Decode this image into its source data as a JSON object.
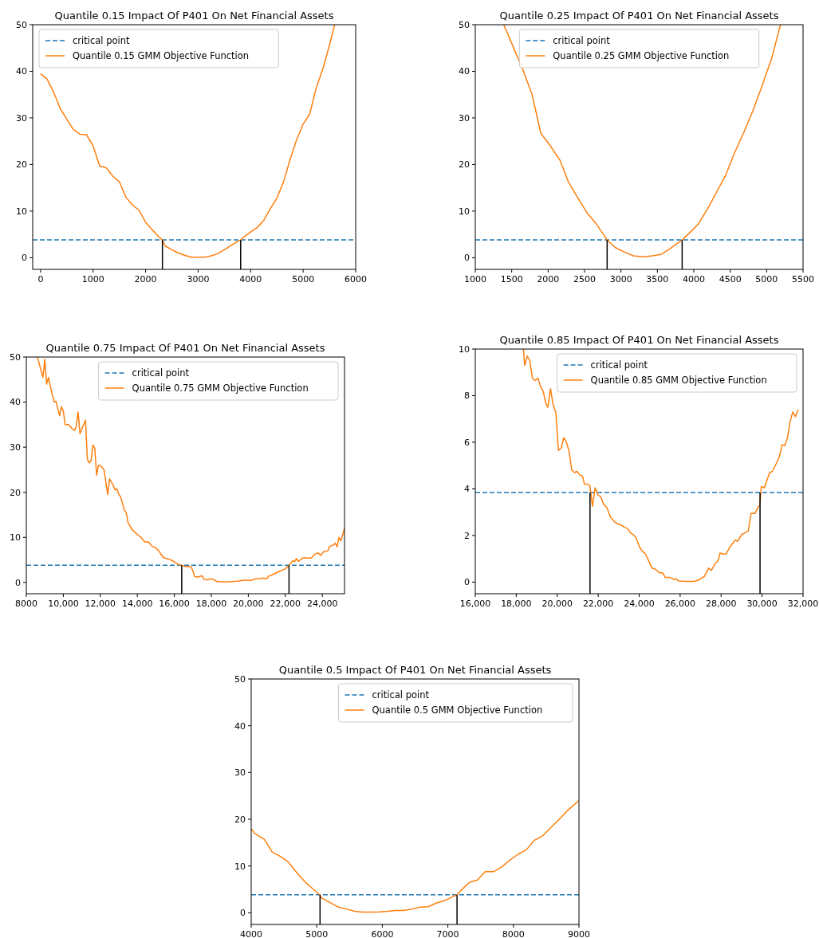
{
  "chart_data": [
    {
      "type": "line",
      "title": "Quantile 0.15 Impact Of P401 On Net Financial Assets",
      "xlim": [
        -150,
        6000
      ],
      "xticks": [
        0,
        1000,
        2000,
        3000,
        4000,
        5000,
        6000
      ],
      "ylim": [
        -2.5,
        50
      ],
      "yticks": [
        0,
        10,
        20,
        30,
        40,
        50
      ],
      "legend": "top left",
      "grid": false,
      "line_style": "solid",
      "ref_lines": [
        {
          "axis": "y",
          "value": 3.84,
          "label": "critical point",
          "color": "#1f77b4",
          "line_style": "dashed"
        }
      ],
      "series": [
        {
          "name": "Quantile 0.15 GMM Objective Function",
          "color": "#ff7f0e",
          "x": [
            0,
            125,
            250,
            375,
            500,
            625,
            750,
            875,
            1000,
            1125,
            1250,
            1375,
            1500,
            1625,
            1750,
            1875,
            2000,
            2125,
            2250,
            2320,
            2375,
            2500,
            2625,
            2750,
            2875,
            3000,
            3125,
            3250,
            3375,
            3500,
            3625,
            3750,
            3810,
            3875,
            4000,
            4125,
            4250,
            4375,
            4500,
            4625,
            4750,
            4875,
            5000,
            5125,
            5250,
            5375,
            5500,
            5600
          ],
          "values": [
            39.5,
            38.3,
            35.5,
            32,
            29.7,
            27.5,
            26.5,
            26.4,
            24,
            19.7,
            19.3,
            17.5,
            16.3,
            13,
            11.3,
            10.2,
            7.6,
            6,
            4.5,
            3.8,
            2.5,
            1.7,
            1,
            0.5,
            0.1,
            0.1,
            0.1,
            0.4,
            0.9,
            1.7,
            2.6,
            3.5,
            3.8,
            4.5,
            5.5,
            6.5,
            8,
            10.5,
            12.8,
            16.2,
            21,
            25.3,
            28.7,
            30.8,
            36.5,
            40.5,
            45.6,
            50
          ]
        },
        {
          "color": "#000000",
          "x": [
            2320,
            2320
          ],
          "values": [
            -2.5,
            3.8
          ]
        },
        {
          "color": "#000000",
          "x": [
            3810,
            3810
          ],
          "values": [
            -2.5,
            3.8
          ]
        }
      ]
    },
    {
      "type": "line",
      "title": "Quantile 0.25 Impact Of P401 On Net Financial Assets",
      "xlim": [
        1000,
        5500
      ],
      "xticks": [
        1000,
        1500,
        2000,
        2500,
        3000,
        3500,
        4000,
        4500,
        5000,
        5500
      ],
      "ylim": [
        -2.5,
        50
      ],
      "yticks": [
        0,
        10,
        20,
        30,
        40,
        50
      ],
      "legend": "top",
      "grid": false,
      "line_style": "solid",
      "ref_lines": [
        {
          "axis": "y",
          "value": 3.84,
          "label": "critical point",
          "color": "#1f77b4",
          "line_style": "dashed"
        }
      ],
      "series": [
        {
          "name": "Quantile 0.25 GMM Objective Function",
          "color": "#ff7f0e",
          "x": [
            1390,
            1500,
            1650,
            1780,
            1900,
            2030,
            2160,
            2280,
            2410,
            2540,
            2660,
            2810,
            2920,
            3050,
            3170,
            3300,
            3430,
            3550,
            3680,
            3840,
            3940,
            4060,
            4190,
            4310,
            4440,
            4560,
            4690,
            4810,
            4940,
            5070,
            5190
          ],
          "values": [
            50,
            46,
            40.5,
            35,
            26.7,
            24,
            21,
            16.2,
            12.8,
            9.5,
            7.3,
            3.8,
            2.2,
            1.2,
            0.4,
            0.2,
            0.4,
            0.7,
            2,
            3.8,
            5.3,
            7.2,
            10.5,
            14,
            17.8,
            22.5,
            27,
            31.5,
            37,
            42.8,
            50
          ]
        },
        {
          "color": "#000000",
          "x": [
            2810,
            2810
          ],
          "values": [
            -2.5,
            3.8
          ]
        },
        {
          "color": "#000000",
          "x": [
            3840,
            3840
          ],
          "values": [
            -2.5,
            3.8
          ]
        }
      ]
    },
    {
      "type": "line",
      "title": "Quantile 0.75 Impact Of P401 On Net Financial Assets",
      "xlim": [
        8000,
        25200
      ],
      "xticks": [
        {
          "value": 8000,
          "label": "8000"
        },
        {
          "value": 10000,
          "label": "10,000"
        },
        {
          "value": 12000,
          "label": "12,000"
        },
        {
          "value": 14000,
          "label": "14,000"
        },
        {
          "value": 16000,
          "label": "16,000"
        },
        {
          "value": 18000,
          "label": "18,000"
        },
        {
          "value": 20000,
          "label": "20,000"
        },
        {
          "value": 22000,
          "label": "22,000"
        },
        {
          "value": 24000,
          "label": "24,000"
        }
      ],
      "ylim": [
        -2.5,
        50
      ],
      "yticks": [
        0,
        10,
        20,
        30,
        40,
        50
      ],
      "legend": "top right",
      "grid": false,
      "line_style": "solid",
      "ref_lines": [
        {
          "axis": "y",
          "value": 3.84,
          "label": "critical point",
          "color": "#1f77b4",
          "line_style": "dashed"
        }
      ],
      "series": [
        {
          "name": "Quantile 0.75 GMM Objective Function",
          "color": "#ff7f0e",
          "x": [
            8600,
            8800,
            8900,
            9000,
            9100,
            9200,
            9300,
            9500,
            9600,
            9800,
            9900,
            10000,
            10100,
            10300,
            10500,
            10600,
            10700,
            10800,
            10900,
            11000,
            11200,
            11300,
            11400,
            11500,
            11600,
            11700,
            11800,
            11900,
            12000,
            12100,
            12200,
            12400,
            12500,
            12700,
            12800,
            12900,
            13000,
            13100,
            13300,
            13400,
            13500,
            13700,
            13900,
            14200,
            14400,
            14600,
            14800,
            15000,
            15200,
            15400,
            15700,
            15900,
            16200,
            16400,
            16600,
            16900,
            17000,
            17100,
            17300,
            17500,
            17600,
            17800,
            18000,
            18200,
            18300,
            18400,
            18800,
            19400,
            19800,
            20000,
            20100,
            20400,
            20700,
            20800,
            21000,
            21100,
            21300,
            21700,
            22000,
            22200,
            22300,
            22400,
            22500,
            22600,
            22700,
            23000,
            23200,
            23400,
            23600,
            23800,
            23900,
            24100,
            24300,
            24400,
            24600,
            24700,
            24800,
            24900,
            25000,
            25200
          ],
          "values": [
            50,
            47,
            45.5,
            49.5,
            44,
            45.5,
            43.5,
            40,
            40.2,
            37,
            39,
            38,
            35,
            35,
            34,
            33.7,
            34.5,
            37.8,
            33,
            34,
            36,
            27.3,
            26.5,
            27,
            30.5,
            29.8,
            23.8,
            26,
            25.9,
            25.5,
            25,
            19.5,
            23,
            21.5,
            20.5,
            20.8,
            19.5,
            19,
            16,
            15.5,
            13.3,
            11.8,
            11,
            10,
            9,
            9,
            8,
            7.7,
            6.8,
            5.5,
            5.2,
            4.8,
            4,
            3.8,
            3.5,
            3.5,
            2.6,
            1.3,
            1.2,
            1.5,
            0.7,
            0.6,
            0.8,
            0.5,
            0.2,
            0.2,
            0.1,
            0.3,
            0.5,
            0.5,
            0.4,
            0.8,
            0.8,
            1,
            0.8,
            1.4,
            1.7,
            2.5,
            3,
            3.8,
            4.3,
            4.8,
            4.6,
            5.3,
            4.7,
            5.5,
            5.4,
            5.4,
            6.3,
            6.5,
            6,
            6.9,
            7,
            8,
            8.3,
            8.7,
            7.9,
            10,
            9.2,
            12
          ]
        },
        {
          "color": "#000000",
          "x": [
            16400,
            16400
          ],
          "values": [
            -2.5,
            3.8
          ]
        },
        {
          "color": "#000000",
          "x": [
            22200,
            22200
          ],
          "values": [
            -2.5,
            3.8
          ]
        }
      ]
    },
    {
      "type": "line",
      "title": "Quantile 0.85 Impact Of P401 On Net Financial Assets",
      "xlim": [
        16000,
        32000
      ],
      "xticks": [
        {
          "value": 16000,
          "label": "16,000"
        },
        {
          "value": 18000,
          "label": "18,000"
        },
        {
          "value": 20000,
          "label": "20,000"
        },
        {
          "value": 22000,
          "label": "22,000"
        },
        {
          "value": 24000,
          "label": "24,000"
        },
        {
          "value": 26000,
          "label": "26,000"
        },
        {
          "value": 28000,
          "label": "28,000"
        },
        {
          "value": 30000,
          "label": "30,000"
        },
        {
          "value": 32000,
          "label": "32,000"
        }
      ],
      "ylim": [
        -0.5,
        10
      ],
      "yticks": [
        0,
        2,
        4,
        6,
        8,
        10
      ],
      "legend": "top right",
      "grid": false,
      "line_style": "solid",
      "ref_lines": [
        {
          "axis": "y",
          "value": 3.84,
          "label": "critical point",
          "color": "#1f77b4",
          "line_style": "dashed"
        }
      ],
      "series": [
        {
          "name": "Quantile 0.85 GMM Objective Function",
          "color": "#ff7f0e",
          "x": [
            18350,
            18410,
            18540,
            18660,
            18790,
            18920,
            19060,
            19180,
            19310,
            19440,
            19540,
            19670,
            19800,
            19930,
            20060,
            20190,
            20320,
            20450,
            20580,
            20710,
            20840,
            20970,
            21100,
            21230,
            21330,
            21460,
            21590,
            21720,
            21850,
            21980,
            22130,
            22260,
            22420,
            22590,
            22780,
            22940,
            23110,
            23280,
            23430,
            23590,
            23760,
            23850,
            24020,
            24180,
            24310,
            24470,
            24630,
            24790,
            24990,
            25140,
            25270,
            25510,
            25710,
            25790,
            25920,
            26280,
            26480,
            26680,
            26930,
            27190,
            27390,
            27520,
            27710,
            27840,
            27950,
            28100,
            28230,
            28430,
            28680,
            28810,
            29010,
            29140,
            29330,
            29460,
            29660,
            29790,
            29890,
            29960,
            30110,
            30370,
            30500,
            30700,
            30850,
            30980,
            31110,
            31240,
            31370,
            31500,
            31630,
            31760
          ],
          "values": [
            10,
            9.3,
            9.7,
            9.5,
            8.75,
            8.65,
            8.75,
            8.4,
            8.2,
            7.7,
            7.5,
            8.3,
            7.6,
            7.3,
            5.65,
            5.75,
            6.2,
            6,
            5.6,
            4.8,
            4.7,
            4.75,
            4.6,
            4.55,
            4.2,
            4.2,
            4.15,
            3.25,
            4.05,
            3.75,
            3.65,
            3.35,
            3.2,
            2.8,
            2.6,
            2.5,
            2.45,
            2.35,
            2.3,
            2.1,
            2,
            1.9,
            1.5,
            1.3,
            1.2,
            0.9,
            0.6,
            0.55,
            0.4,
            0.4,
            0.2,
            0.2,
            0.1,
            0.15,
            0.05,
            0.03,
            0.03,
            0.03,
            0.1,
            0.25,
            0.6,
            0.5,
            0.8,
            0.9,
            1.25,
            1.2,
            1.2,
            1.5,
            1.8,
            1.75,
            2.05,
            2.1,
            2.2,
            2.95,
            2.95,
            3.2,
            3.3,
            4.1,
            4.05,
            4.7,
            4.75,
            5.1,
            5.4,
            5.9,
            5.85,
            6.2,
            6.9,
            7.3,
            7.1,
            7.4
          ]
        },
        {
          "color": "#000000",
          "x": [
            21600,
            21600
          ],
          "values": [
            -0.5,
            3.84
          ]
        },
        {
          "color": "#000000",
          "x": [
            29900,
            29900
          ],
          "values": [
            -0.5,
            3.84
          ]
        }
      ]
    },
    {
      "type": "line",
      "title": "Quantile 0.5 Impact Of P401 On Net Financial Assets",
      "xlim": [
        4000,
        9000
      ],
      "xticks": [
        4000,
        5000,
        6000,
        7000,
        8000,
        9000
      ],
      "ylim": [
        -2.5,
        50
      ],
      "yticks": [
        0,
        10,
        20,
        30,
        40,
        50
      ],
      "legend": "top right",
      "grid": false,
      "line_style": "solid",
      "ref_lines": [
        {
          "axis": "y",
          "value": 3.84,
          "label": "critical point",
          "color": "#1f77b4",
          "line_style": "dashed"
        }
      ],
      "series": [
        {
          "name": "Quantile 0.5 GMM Objective Function",
          "color": "#ff7f0e",
          "x": [
            4000,
            4050,
            4200,
            4320,
            4450,
            4570,
            4700,
            4820,
            4950,
            5050,
            5070,
            5200,
            5330,
            5450,
            5580,
            5700,
            5830,
            5950,
            6080,
            6200,
            6330,
            6450,
            6580,
            6700,
            6830,
            6950,
            7080,
            7140,
            7200,
            7330,
            7450,
            7570,
            7700,
            7820,
            7950,
            8070,
            8200,
            8320,
            8450,
            8570,
            8700,
            8820,
            9000
          ],
          "values": [
            18,
            17,
            15.7,
            13,
            12,
            10.8,
            8.5,
            6.6,
            5,
            3.8,
            3.2,
            2.2,
            1.2,
            0.8,
            0.3,
            0.15,
            0.15,
            0.2,
            0.3,
            0.5,
            0.5,
            0.8,
            1.2,
            1.3,
            2.1,
            2.6,
            3.5,
            3.8,
            4.8,
            6.5,
            7,
            8.8,
            8.8,
            9.8,
            11.3,
            12.5,
            13.5,
            15.5,
            16.5,
            18.2,
            20,
            21.8,
            24
          ]
        },
        {
          "color": "#000000",
          "x": [
            5050,
            5050
          ],
          "values": [
            -2.5,
            3.8
          ]
        },
        {
          "color": "#000000",
          "x": [
            7140,
            7140
          ],
          "values": [
            -2.5,
            3.8
          ]
        }
      ]
    }
  ]
}
